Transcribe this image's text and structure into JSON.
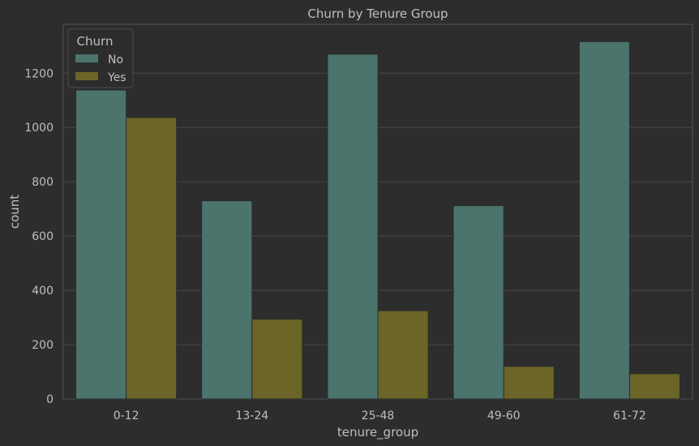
{
  "chart_data": {
    "type": "bar",
    "title": "Churn by Tenure Group",
    "xlabel": "tenure_group",
    "ylabel": "count",
    "categories": [
      "0-12",
      "13-24",
      "25-48",
      "49-60",
      "61-72"
    ],
    "series": [
      {
        "name": "No",
        "values": [
          1138,
          730,
          1270,
          712,
          1316
        ],
        "color": "#4b746d"
      },
      {
        "name": "Yes",
        "values": [
          1037,
          294,
          325,
          120,
          93
        ],
        "color": "#6b6527"
      }
    ],
    "ylim": [
      0,
      1380
    ],
    "yticks": [
      0,
      200,
      400,
      600,
      800,
      1000,
      1200
    ],
    "grid": true,
    "legend": {
      "title": "Churn",
      "placement": "top-left"
    }
  }
}
